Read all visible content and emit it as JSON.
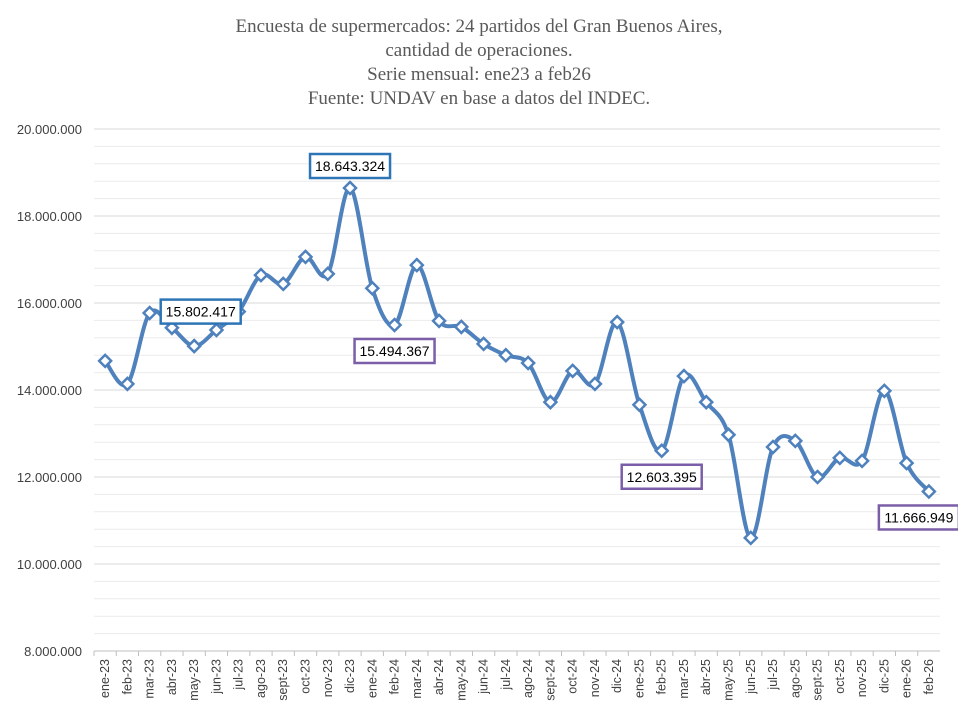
{
  "chart_data": {
    "type": "line",
    "title": [
      "Encuesta de supermercados: 24 partidos del Gran Buenos Aires,",
      "cantidad de operaciones.",
      "Serie mensual: ene23 a feb26",
      "Fuente: UNDAV en base a datos del INDEC."
    ],
    "xlabel": "",
    "ylabel": "",
    "ylim": [
      8000000,
      20000000
    ],
    "yticks": [
      8000000,
      10000000,
      12000000,
      14000000,
      16000000,
      18000000,
      20000000
    ],
    "ytick_labels": [
      "8.000.000",
      "10.000.000",
      "12.000.000",
      "14.000.000",
      "16.000.000",
      "18.000.000",
      "20.000.000"
    ],
    "grid": true,
    "legend": "none",
    "color": "#4F81BD",
    "categories": [
      "ene-23",
      "feb-23",
      "mar-23",
      "abr-23",
      "may-23",
      "jun-23",
      "jul-23",
      "ago-23",
      "sept-23",
      "oct-23",
      "nov-23",
      "dic-23",
      "ene-24",
      "feb-24",
      "mar-24",
      "abr-24",
      "may-24",
      "jun-24",
      "jul-24",
      "ago-24",
      "sept-24",
      "oct-24",
      "nov-24",
      "dic-24",
      "ene-25",
      "feb-25",
      "mar-25",
      "abr-25",
      "may-25",
      "jun-25",
      "jul-25",
      "ago-25",
      "sept-25",
      "oct-25",
      "nov-25",
      "dic-25",
      "ene-26",
      "feb-26"
    ],
    "values": [
      14670000,
      14140000,
      15770000,
      15430000,
      15010000,
      15380000,
      15802417,
      16640000,
      16440000,
      17060000,
      16670000,
      18643324,
      16340000,
      15494367,
      16870000,
      15590000,
      15450000,
      15060000,
      14800000,
      14620000,
      13720000,
      14440000,
      14140000,
      15560000,
      13660000,
      12603395,
      14320000,
      13720000,
      12970000,
      10600000,
      12690000,
      12830000,
      12000000,
      12440000,
      12370000,
      13980000,
      12320000,
      11666949
    ],
    "annotations": [
      {
        "category": "jul-23",
        "label": "15.802.417",
        "border": "#2E75B6"
      },
      {
        "category": "dic-23",
        "label": "18.643.324",
        "border": "#2E75B6"
      },
      {
        "category": "feb-24",
        "label": "15.494.367",
        "border": "#7B5EA7"
      },
      {
        "category": "feb-25",
        "label": "12.603.395",
        "border": "#7B5EA7"
      },
      {
        "category": "feb-26",
        "label": "11.666.949",
        "border": "#7B5EA7"
      }
    ]
  }
}
